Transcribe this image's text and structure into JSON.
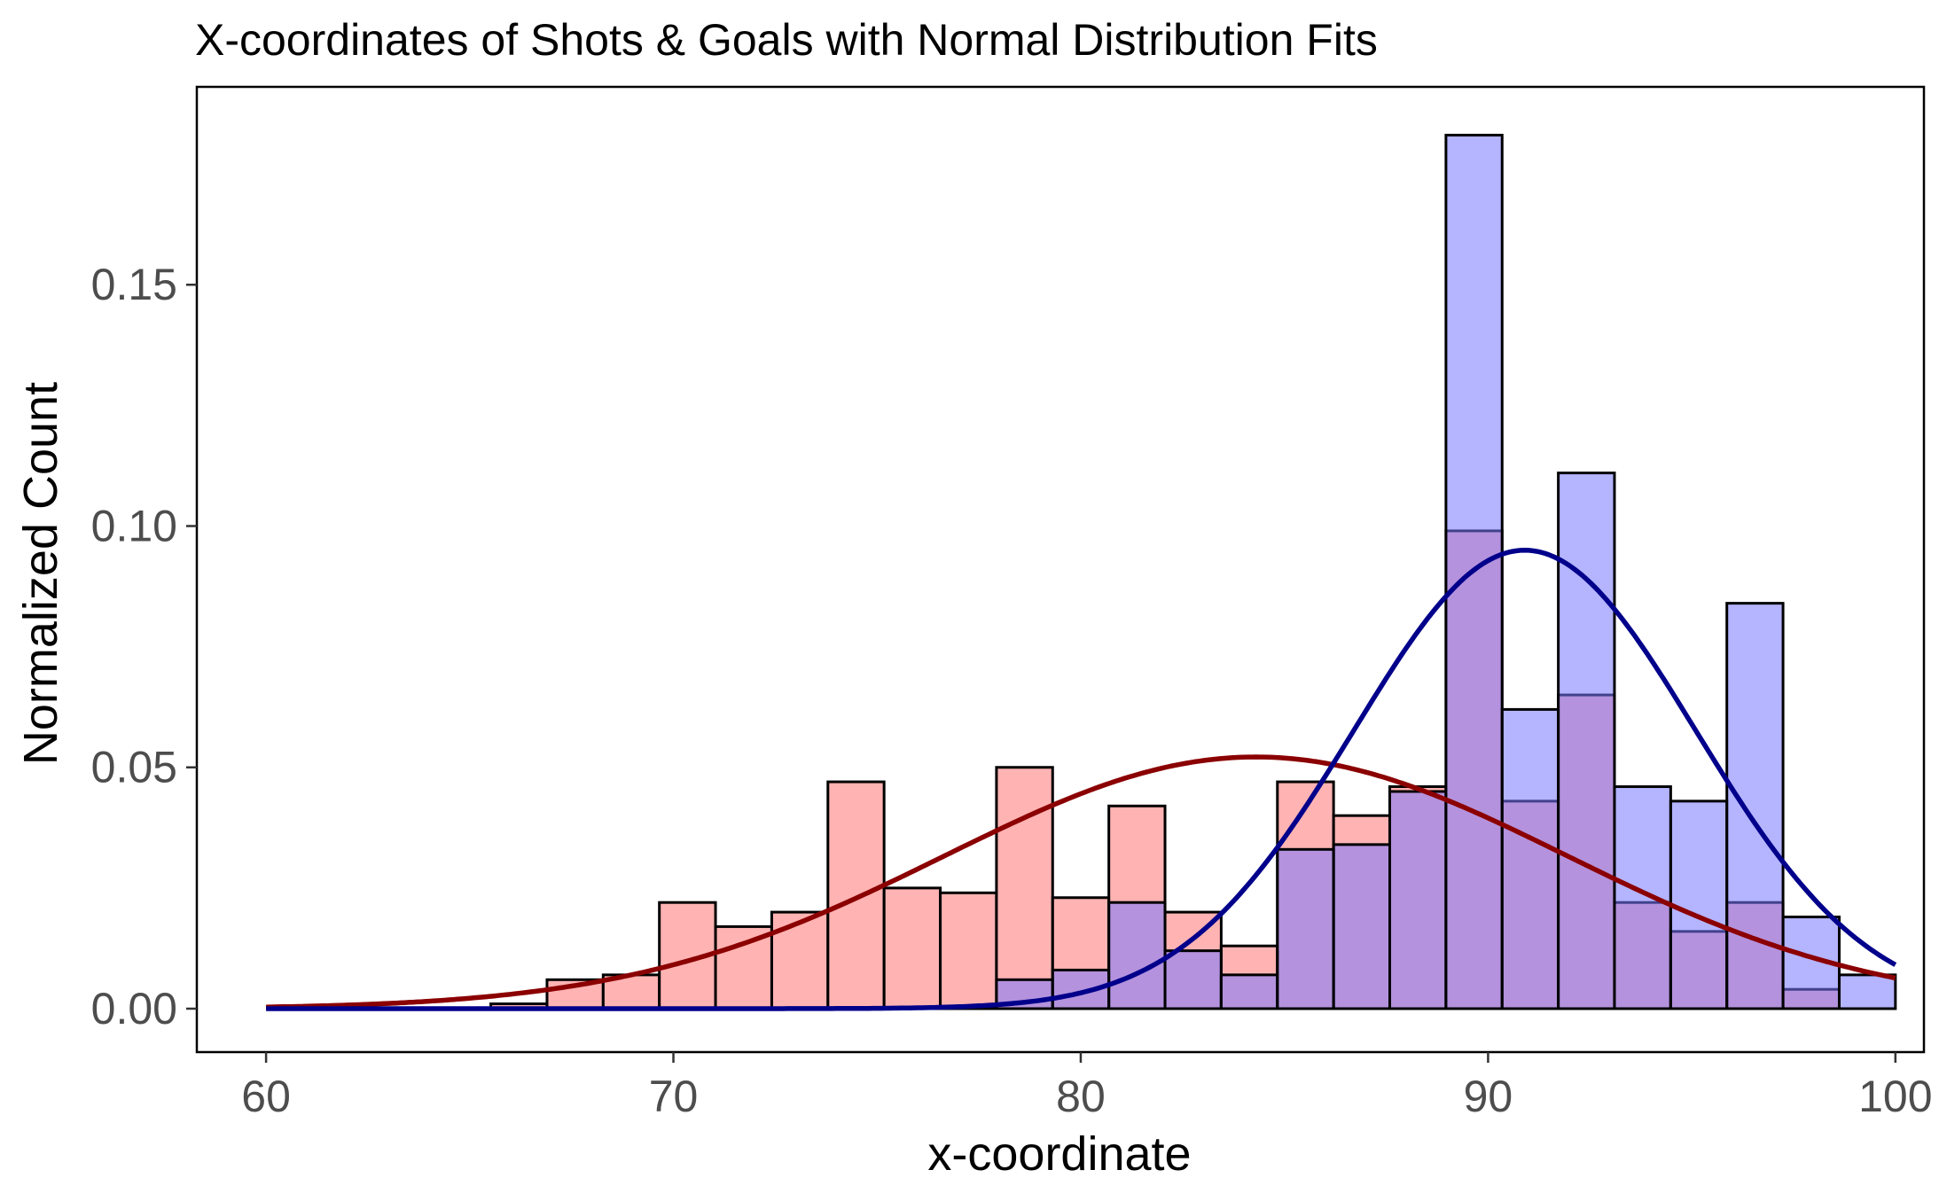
{
  "chart_data": {
    "type": "bar",
    "title": "X-coordinates of Shots & Goals with Normal Distribution Fits",
    "xlabel": "x-coordinate",
    "ylabel": "Normalized Count",
    "xlim": [
      58.3,
      100.7
    ],
    "ylim": [
      -0.009,
      0.191
    ],
    "x_ticks": [
      60,
      70,
      80,
      90,
      100
    ],
    "x_tick_labels": [
      "60",
      "70",
      "80",
      "90",
      100
    ],
    "y_ticks": [
      0.0,
      0.05,
      0.1,
      0.15
    ],
    "y_tick_labels": [
      "0.00",
      "0.05",
      "0.10",
      "0.15"
    ],
    "grid": false,
    "legend": "none",
    "bin_edges": [
      60.0,
      61.379,
      62.759,
      64.138,
      65.517,
      66.897,
      68.276,
      69.655,
      71.034,
      72.414,
      73.793,
      75.172,
      76.552,
      77.931,
      79.31,
      80.69,
      82.069,
      83.448,
      84.828,
      86.207,
      87.586,
      88.966,
      90.345,
      91.724,
      93.103,
      94.483,
      95.862,
      97.241,
      98.621,
      100.0
    ],
    "series": [
      {
        "values": [
          0.0,
          0.0,
          0.0,
          0.0,
          0.001,
          0.006,
          0.007,
          0.022,
          0.017,
          0.02,
          0.047,
          0.025,
          0.024,
          0.05,
          0.023,
          0.042,
          0.02,
          0.013,
          0.047,
          0.04,
          0.046,
          0.099,
          0.043,
          0.065,
          0.022,
          0.016,
          0.022,
          0.004,
          0.0
        ],
        "color": "#ff9999",
        "opacity": 0.75
      },
      {
        "values": [
          0.0,
          0.0,
          0.0,
          0.0,
          0.0,
          0.0,
          0.0,
          0.0,
          0.0,
          0.0,
          0.0,
          0.0,
          0.0,
          0.006,
          0.008,
          0.022,
          0.012,
          0.007,
          0.033,
          0.034,
          0.045,
          0.181,
          0.062,
          0.111,
          0.046,
          0.043,
          0.084,
          0.019,
          0.007
        ],
        "color": "#7777ff",
        "opacity": 0.55
      }
    ],
    "fits": [
      {
        "type": "normal",
        "mean": 84.3,
        "sd": 7.65,
        "color": "#8b0000"
      },
      {
        "type": "normal",
        "mean": 90.9,
        "sd": 4.2,
        "color": "#00008b"
      }
    ]
  }
}
